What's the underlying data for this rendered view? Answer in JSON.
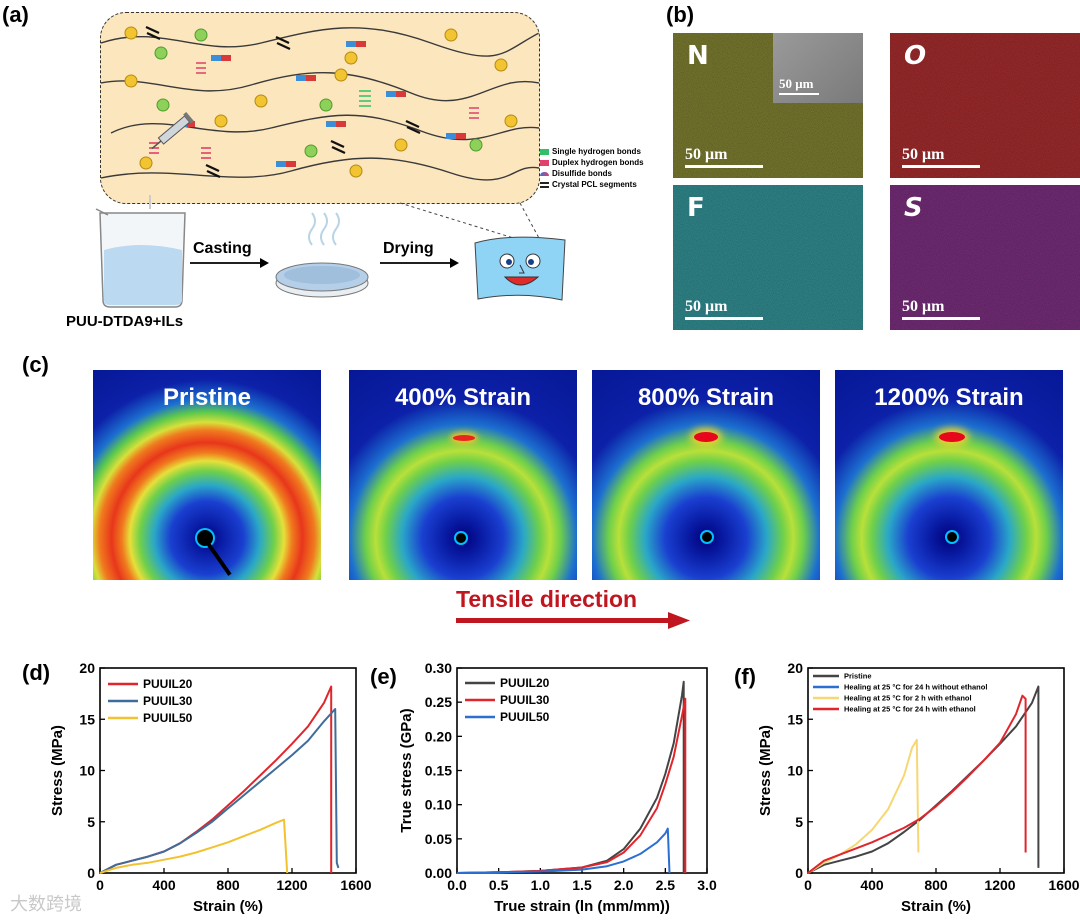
{
  "panels": {
    "a": "(a)",
    "b": "(b)",
    "c": "(c)",
    "d": "(d)",
    "e": "(e)",
    "f": "(f)"
  },
  "panel_a": {
    "legend": [
      "Single hydrogen bonds",
      "Duplex hydrogen bonds",
      "Disulfide bonds",
      "Crystal PCL segments"
    ],
    "legend_colors": [
      "#2fbf6a",
      "#e0406a",
      "#3a6fd8",
      "#222222"
    ],
    "casting": "Casting",
    "drying": "Drying",
    "beaker_label": "PUU-DTDA9+ILs"
  },
  "panel_b": {
    "maps": [
      {
        "element": "N",
        "scale": "50 μm",
        "color": "#4a4a1a"
      },
      {
        "element": "O",
        "scale": "50 μm",
        "color": "#6a0f10"
      },
      {
        "element": "F",
        "scale": "50 μm",
        "color": "#1c4f57"
      },
      {
        "element": "S",
        "scale": "50 μm",
        "color": "#3a1440"
      }
    ],
    "inset_scale": "50 μm"
  },
  "panel_c": {
    "images": [
      "Pristine",
      "400% Strain",
      "800% Strain",
      "1200% Strain"
    ],
    "tensile": "Tensile direction"
  },
  "chart_data": [
    {
      "type": "line",
      "panel": "d",
      "xlabel": "Strain (%)",
      "ylabel": "Stress (MPa)",
      "xlim": [
        0,
        1600
      ],
      "ylim": [
        0,
        20
      ],
      "xticks": [
        0,
        400,
        800,
        1200,
        1600
      ],
      "yticks": [
        0,
        5,
        10,
        15,
        20
      ],
      "legend_position": "top-left",
      "series": [
        {
          "name": "PUUIL20",
          "color": "#e0262c",
          "x": [
            0,
            100,
            200,
            300,
            400,
            500,
            600,
            700,
            800,
            900,
            1000,
            1100,
            1200,
            1300,
            1400,
            1445,
            1445
          ],
          "y": [
            0,
            0.8,
            1.2,
            1.6,
            2.1,
            2.9,
            4.0,
            5.2,
            6.6,
            8.0,
            9.5,
            11.0,
            12.6,
            14.3,
            16.6,
            18.2,
            0
          ]
        },
        {
          "name": "PUUIL30",
          "color": "#3f6c99",
          "x": [
            0,
            100,
            200,
            300,
            400,
            500,
            600,
            700,
            800,
            900,
            1000,
            1100,
            1200,
            1300,
            1400,
            1470,
            1480,
            1490
          ],
          "y": [
            0,
            0.8,
            1.2,
            1.6,
            2.1,
            2.9,
            3.9,
            5.0,
            6.3,
            7.6,
            8.9,
            10.2,
            11.5,
            12.9,
            14.8,
            16.0,
            1.0,
            0.5
          ]
        },
        {
          "name": "PUUIL50",
          "color": "#f2c230",
          "x": [
            0,
            100,
            200,
            300,
            400,
            500,
            600,
            700,
            800,
            900,
            1000,
            1100,
            1150,
            1170
          ],
          "y": [
            0,
            0.5,
            0.8,
            1.0,
            1.3,
            1.6,
            2.0,
            2.5,
            3.0,
            3.6,
            4.2,
            4.9,
            5.2,
            0
          ]
        }
      ]
    },
    {
      "type": "line",
      "panel": "e",
      "xlabel": "True strain (ln (mm/mm))",
      "ylabel": "True stress (GPa)",
      "xlim": [
        0,
        3.0
      ],
      "ylim": [
        0,
        0.3
      ],
      "xticks": [
        0.0,
        0.5,
        1.0,
        1.5,
        2.0,
        2.5,
        3.0
      ],
      "yticks": [
        0.0,
        0.05,
        0.1,
        0.15,
        0.2,
        0.25,
        0.3
      ],
      "legend_position": "top-left",
      "series": [
        {
          "name": "PUUIL20",
          "color": "#444444",
          "x": [
            0,
            0.5,
            1.0,
            1.5,
            1.8,
            2.0,
            2.2,
            2.4,
            2.5,
            2.6,
            2.7,
            2.72,
            2.72
          ],
          "y": [
            0,
            0.001,
            0.003,
            0.008,
            0.018,
            0.035,
            0.065,
            0.11,
            0.145,
            0.19,
            0.26,
            0.28,
            0
          ]
        },
        {
          "name": "PUUIL30",
          "color": "#e0262c",
          "x": [
            0,
            0.5,
            1.0,
            1.5,
            1.8,
            2.0,
            2.2,
            2.4,
            2.5,
            2.6,
            2.7,
            2.74,
            2.74
          ],
          "y": [
            0,
            0.001,
            0.003,
            0.008,
            0.016,
            0.03,
            0.055,
            0.095,
            0.13,
            0.17,
            0.23,
            0.255,
            0
          ]
        },
        {
          "name": "PUUIL50",
          "color": "#2b6fd1",
          "x": [
            0,
            0.5,
            1.0,
            1.5,
            1.8,
            2.0,
            2.2,
            2.4,
            2.5,
            2.53,
            2.55
          ],
          "y": [
            0,
            0.001,
            0.002,
            0.005,
            0.01,
            0.017,
            0.028,
            0.045,
            0.058,
            0.065,
            0
          ]
        }
      ]
    },
    {
      "type": "line",
      "panel": "f",
      "xlabel": "Strain (%)",
      "ylabel": "Stress (MPa)",
      "xlim": [
        0,
        1600
      ],
      "ylim": [
        0,
        20
      ],
      "xticks": [
        0,
        400,
        800,
        1200,
        1600
      ],
      "yticks": [
        0,
        5,
        10,
        15,
        20
      ],
      "legend_position": "top-left",
      "series": [
        {
          "name": "Pristine",
          "color": "#444444",
          "x": [
            0,
            100,
            200,
            300,
            400,
            500,
            600,
            700,
            800,
            900,
            1000,
            1100,
            1200,
            1300,
            1400,
            1440,
            1440
          ],
          "y": [
            0,
            0.8,
            1.2,
            1.6,
            2.1,
            2.9,
            4.0,
            5.2,
            6.6,
            8.0,
            9.5,
            11.0,
            12.6,
            14.3,
            16.6,
            18.2,
            0.5
          ]
        },
        {
          "name": "Healing at 25 °C for 24 h without ethanol",
          "color": "#2b6fd1",
          "x": [],
          "y": []
        },
        {
          "name": "Healing at 25 °C for 2 h with ethanol",
          "color": "#f7d774",
          "x": [
            0,
            100,
            200,
            300,
            400,
            500,
            600,
            650,
            680,
            690
          ],
          "y": [
            0,
            1.0,
            1.8,
            2.8,
            4.2,
            6.2,
            9.5,
            12.2,
            13.0,
            2.0
          ]
        },
        {
          "name": "Healing at 25 °C for 24 h with ethanol",
          "color": "#e0262c",
          "x": [
            0,
            100,
            200,
            300,
            400,
            500,
            600,
            700,
            800,
            900,
            1000,
            1100,
            1200,
            1300,
            1340,
            1360,
            1360
          ],
          "y": [
            0,
            1.2,
            1.8,
            2.4,
            3.0,
            3.7,
            4.4,
            5.3,
            6.5,
            7.9,
            9.4,
            11.0,
            12.7,
            15.5,
            17.3,
            17.0,
            2.0
          ]
        }
      ]
    }
  ],
  "watermark": "大数跨境"
}
